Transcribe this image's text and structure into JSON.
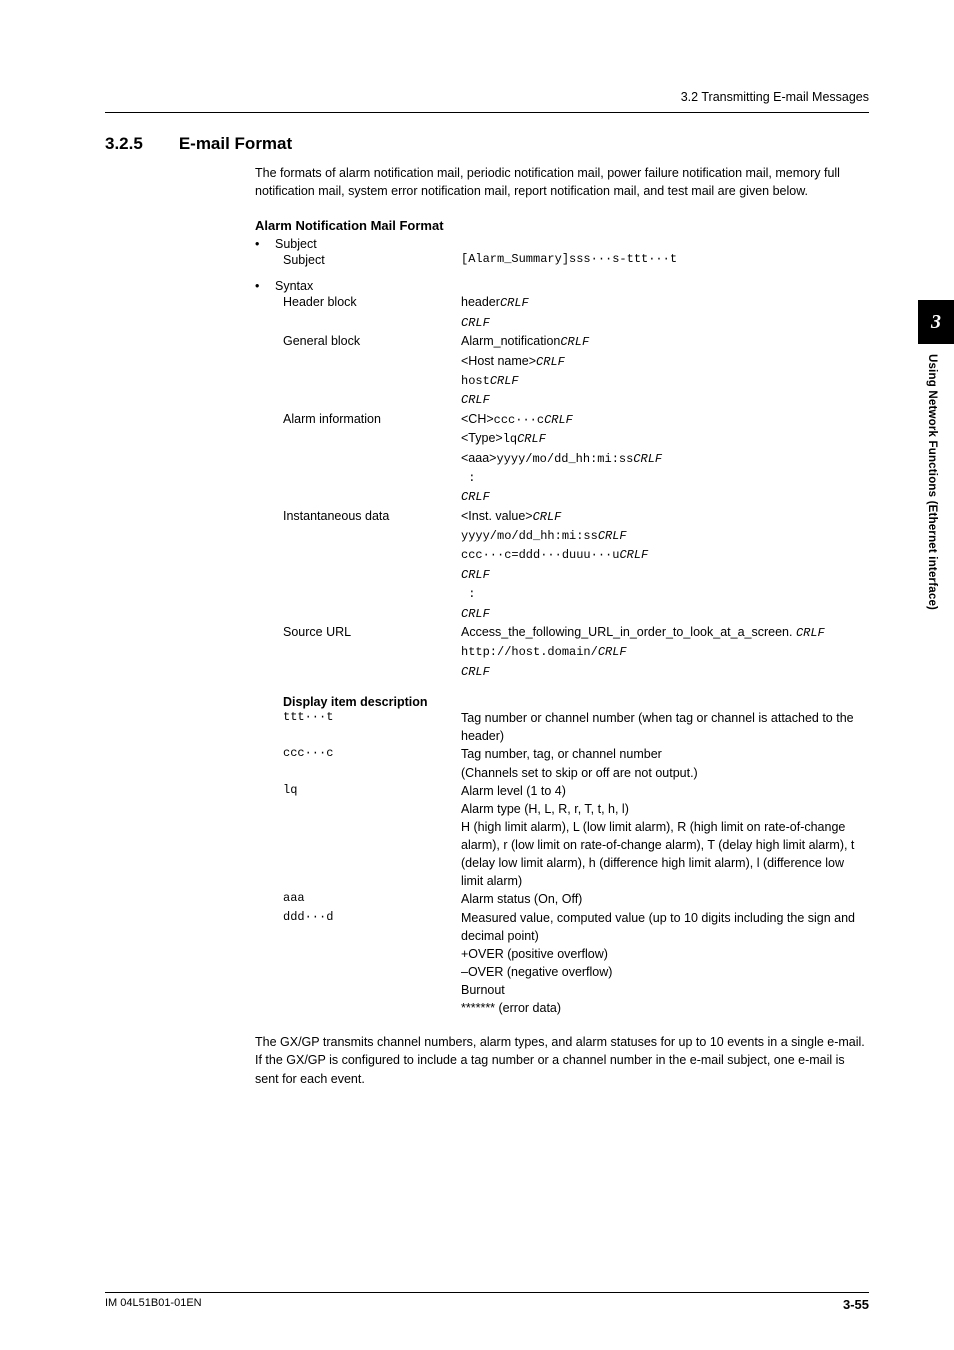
{
  "running_head": "3.2  Transmitting E-mail Messages",
  "section": {
    "num": "3.2.5",
    "title": "E-mail Format"
  },
  "intro": "The formats of alarm notification mail, periodic notification mail, power failure notification mail, memory full notification mail, system error notification mail, report notification mail, and test mail are given below.",
  "subhead": "Alarm Notification Mail Format",
  "bullets": {
    "subject": {
      "label": "Subject",
      "key": "Subject",
      "val_mono": "[Alarm_Summary]sss···s-ttt···t"
    },
    "syntax": {
      "label": "Syntax",
      "rows": [
        {
          "key": "Header block",
          "lines": [
            {
              "pre": "header",
              "ital": "CRLF"
            },
            {
              "ital": "CRLF"
            }
          ]
        },
        {
          "key": "General block",
          "lines": [
            {
              "pre": "Alarm_notification",
              "ital": "CRLF"
            },
            {
              "pre": "<Host name>",
              "ital": "CRLF"
            },
            {
              "mono": "host",
              "ital": "CRLF"
            },
            {
              "ital": "CRLF"
            }
          ]
        },
        {
          "key": "Alarm information",
          "lines": [
            {
              "pre": "<CH>",
              "mono": "ccc···c",
              "ital": "CRLF"
            },
            {
              "pre": "<Type>",
              "mono": "lq",
              "ital": "CRLF"
            },
            {
              "pre": "<aaa>",
              "mono": "yyyy/mo/dd_hh:mi:ss",
              "ital": "CRLF"
            },
            {
              "mono": " :"
            },
            {
              "ital": "CRLF"
            }
          ]
        },
        {
          "key": "Instantaneous data",
          "lines": [
            {
              "pre": "<Inst. value>",
              "ital": "CRLF"
            },
            {
              "mono": "yyyy/mo/dd_hh:mi:ss",
              "ital": "CRLF"
            },
            {
              "mono": "ccc···c=ddd···duuu···u",
              "ital": "CRLF"
            },
            {
              "ital": "CRLF"
            },
            {
              "mono": " :"
            },
            {
              "ital": "CRLF"
            }
          ]
        },
        {
          "key": "Source URL",
          "lines": [
            {
              "pre": "Access_the_following_URL_in_order_to_look_at_a_screen. ",
              "ital": "CRLF"
            },
            {
              "mono": "http://host.domain/",
              "ital": "CRLF"
            },
            {
              "ital": "CRLF"
            }
          ]
        }
      ]
    }
  },
  "desc_head": "Display item description",
  "desc_rows": [
    {
      "k": "ttt···t",
      "v": "Tag number or channel number (when tag or channel is attached to the header)"
    },
    {
      "k": "ccc···c",
      "v": "Tag number, tag, or channel number\n(Channels set to skip or off are not output.)"
    },
    {
      "k": "lq",
      "v": "Alarm level (1 to 4)\nAlarm type (H, L, R, r, T, t, h, l)\nH (high limit alarm), L (low limit alarm), R (high limit on rate-of-change alarm), r (low limit on rate-of-change alarm), T (delay high limit alarm), t (delay low limit alarm), h (difference high limit alarm), l (difference low limit alarm)"
    },
    {
      "k": "aaa",
      "v": "Alarm status (On, Off)"
    },
    {
      "k": "ddd···d",
      "v": "Measured value, computed value (up to 10 digits including the sign and decimal point)\n+OVER (positive overflow)\n–OVER (negative overflow)\nBurnout\n******* (error data)"
    }
  ],
  "outro": "The GX/GP transmits channel numbers, alarm types, and alarm statuses for up to 10 events in a single e-mail. If the GX/GP is configured to include a tag number or a channel number in the e-mail subject, one e-mail is sent for each event.",
  "side_tab": {
    "num": "3",
    "text": "Using Network Functions (Ethernet interface)"
  },
  "footer": {
    "left": "IM 04L51B01-01EN",
    "right": "3-55"
  }
}
